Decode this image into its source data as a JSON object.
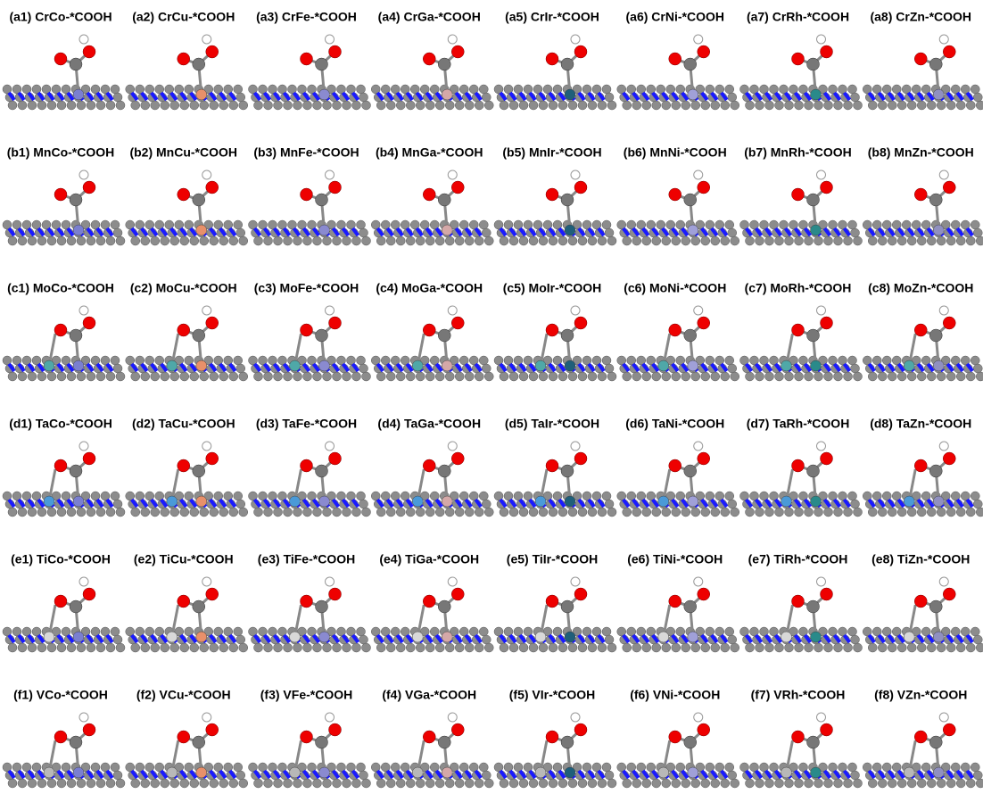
{
  "panels": [
    [
      "(a1) CrCo-*COOH",
      "(a2) CrCu-*COOH",
      "(a3) CrFe-*COOH",
      "(a4) CrGa-*COOH",
      "(a5) CrIr-*COOH",
      "(a6) CrNi-*COOH",
      "(a7) CrRh-*COOH",
      "(a8) CrZn-*COOH"
    ],
    [
      "(b1) MnCo-*COOH",
      "(b2) MnCu-*COOH",
      "(b3) MnFe-*COOH",
      "(b4) MnGa-*COOH",
      "(b5) MnIr-*COOH",
      "(b6) MnNi-*COOH",
      "(b7) MnRh-*COOH",
      "(b8) MnZn-*COOH"
    ],
    [
      "(c1) MoCo-*COOH",
      "(c2) MoCu-*COOH",
      "(c3) MoFe-*COOH",
      "(c4) MoGa-*COOH",
      "(c5) MoIr-*COOH",
      "(c6) MoNi-*COOH",
      "(c7) MoRh-*COOH",
      "(c8) MoZn-*COOH"
    ],
    [
      "(d1) TaCo-*COOH",
      "(d2) TaCu-*COOH",
      "(d3) TaFe-*COOH",
      "(d4) TaGa-*COOH",
      "(d5) TaIr-*COOH",
      "(d6) TaNi-*COOH",
      "(d7) TaRh-*COOH",
      "(d8) TaZn-*COOH"
    ],
    [
      "(e1) TiCo-*COOH",
      "(e2) TiCu-*COOH",
      "(e3) TiFe-*COOH",
      "(e4) TiGa-*COOH",
      "(e5) TiIr-*COOH",
      "(e6) TiNi-*COOH",
      "(e7) TiRh-*COOH",
      "(e8) TiZn-*COOH"
    ],
    [
      "(f1) VCo-*COOH",
      "(f2) VCu-*COOH",
      "(f3) VFe-*COOH",
      "(f4) VGa-*COOH",
      "(f5) VIr-*COOH",
      "(f6) VNi-*COOH",
      "(f7) VRh-*COOH",
      "(f8) VZn-*COOH"
    ]
  ]
}
